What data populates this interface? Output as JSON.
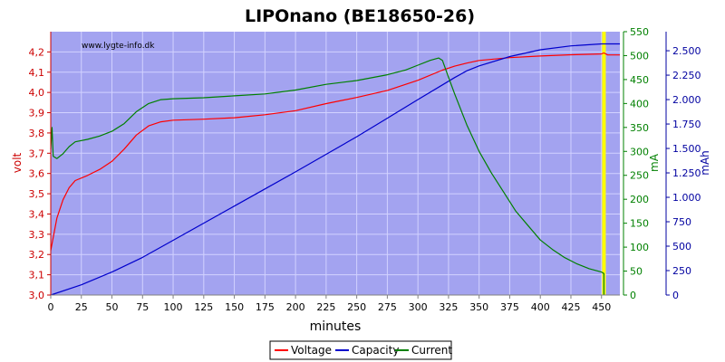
{
  "chart_data": {
    "type": "line",
    "title": "LIPOnano (BE18650-26)",
    "watermark": "www.lygte-info.dk",
    "xlabel": "minutes",
    "ylabel_left": "volt",
    "ylabel_right1": "mA",
    "ylabel_right2": "mAh",
    "xlim": [
      0,
      465
    ],
    "ylim_volt": [
      3.0,
      4.3
    ],
    "ylim_ma": [
      0,
      550
    ],
    "ylim_mah": [
      0,
      2695
    ],
    "x_ticks": [
      "0",
      "25",
      "50",
      "75",
      "100",
      "125",
      "150",
      "175",
      "200",
      "225",
      "250",
      "275",
      "300",
      "325",
      "350",
      "375",
      "400",
      "425",
      "450"
    ],
    "volt_ticks": [
      "3,0",
      "3,1",
      "3,2",
      "3,3",
      "3,4",
      "3,5",
      "3,6",
      "3,7",
      "3,8",
      "3,9",
      "4,0",
      "4,1",
      "4,2"
    ],
    "ma_ticks": [
      "0",
      "50",
      "100",
      "150",
      "200",
      "250",
      "300",
      "350",
      "400",
      "450",
      "500",
      "550"
    ],
    "mah_ticks": [
      "0",
      "250",
      "500",
      "750",
      "1.000",
      "1.250",
      "1.500",
      "1.750",
      "2.000",
      "2.250",
      "2.500"
    ],
    "grid": true,
    "legend_position": "bottom-center",
    "marker_line": {
      "x": 452,
      "color": "#ffff00"
    },
    "colors": {
      "plot_bg": "#a3a3f0",
      "grid": "#d2d2ff",
      "voltage": "#ff0000",
      "capacity": "#0000cc",
      "current": "#008000",
      "volt_axis": "#cc0000",
      "ma_axis": "#008000",
      "mah_axis": "#0000a0"
    },
    "series": [
      {
        "name": "Voltage",
        "axis": "volt",
        "points": [
          [
            0,
            3.22
          ],
          [
            5,
            3.38
          ],
          [
            10,
            3.47
          ],
          [
            15,
            3.53
          ],
          [
            20,
            3.565
          ],
          [
            30,
            3.59
          ],
          [
            40,
            3.62
          ],
          [
            50,
            3.66
          ],
          [
            60,
            3.72
          ],
          [
            70,
            3.79
          ],
          [
            80,
            3.835
          ],
          [
            90,
            3.855
          ],
          [
            100,
            3.863
          ],
          [
            125,
            3.868
          ],
          [
            150,
            3.875
          ],
          [
            175,
            3.89
          ],
          [
            200,
            3.91
          ],
          [
            225,
            3.945
          ],
          [
            250,
            3.975
          ],
          [
            275,
            4.01
          ],
          [
            300,
            4.06
          ],
          [
            320,
            4.11
          ],
          [
            330,
            4.13
          ],
          [
            340,
            4.145
          ],
          [
            350,
            4.158
          ],
          [
            375,
            4.172
          ],
          [
            400,
            4.18
          ],
          [
            425,
            4.186
          ],
          [
            450,
            4.19
          ],
          [
            452,
            4.195
          ],
          [
            455,
            4.185
          ],
          [
            465,
            4.185
          ]
        ]
      },
      {
        "name": "Capacity",
        "axis": "mah",
        "points": [
          [
            0,
            0
          ],
          [
            25,
            105
          ],
          [
            50,
            235
          ],
          [
            75,
            385
          ],
          [
            100,
            560
          ],
          [
            125,
            735
          ],
          [
            150,
            910
          ],
          [
            175,
            1085
          ],
          [
            200,
            1260
          ],
          [
            225,
            1440
          ],
          [
            250,
            1620
          ],
          [
            275,
            1810
          ],
          [
            300,
            2000
          ],
          [
            320,
            2150
          ],
          [
            330,
            2225
          ],
          [
            340,
            2295
          ],
          [
            350,
            2345
          ],
          [
            375,
            2440
          ],
          [
            400,
            2510
          ],
          [
            425,
            2550
          ],
          [
            450,
            2570
          ],
          [
            465,
            2570
          ]
        ]
      },
      {
        "name": "Current",
        "axis": "ma",
        "points": [
          [
            0,
            305
          ],
          [
            1,
            350
          ],
          [
            2,
            290
          ],
          [
            5,
            285
          ],
          [
            10,
            295
          ],
          [
            15,
            310
          ],
          [
            20,
            320
          ],
          [
            30,
            325
          ],
          [
            40,
            332
          ],
          [
            50,
            342
          ],
          [
            60,
            358
          ],
          [
            70,
            383
          ],
          [
            80,
            400
          ],
          [
            90,
            408
          ],
          [
            100,
            410
          ],
          [
            125,
            412
          ],
          [
            150,
            416
          ],
          [
            175,
            420
          ],
          [
            200,
            428
          ],
          [
            225,
            440
          ],
          [
            250,
            448
          ],
          [
            275,
            460
          ],
          [
            290,
            470
          ],
          [
            300,
            480
          ],
          [
            310,
            490
          ],
          [
            317,
            495
          ],
          [
            320,
            490
          ],
          [
            325,
            455
          ],
          [
            330,
            420
          ],
          [
            340,
            355
          ],
          [
            350,
            300
          ],
          [
            360,
            255
          ],
          [
            370,
            215
          ],
          [
            380,
            175
          ],
          [
            390,
            145
          ],
          [
            400,
            115
          ],
          [
            410,
            95
          ],
          [
            420,
            78
          ],
          [
            430,
            65
          ],
          [
            440,
            55
          ],
          [
            450,
            48
          ],
          [
            452,
            45
          ],
          [
            452,
            0
          ]
        ]
      }
    ]
  }
}
